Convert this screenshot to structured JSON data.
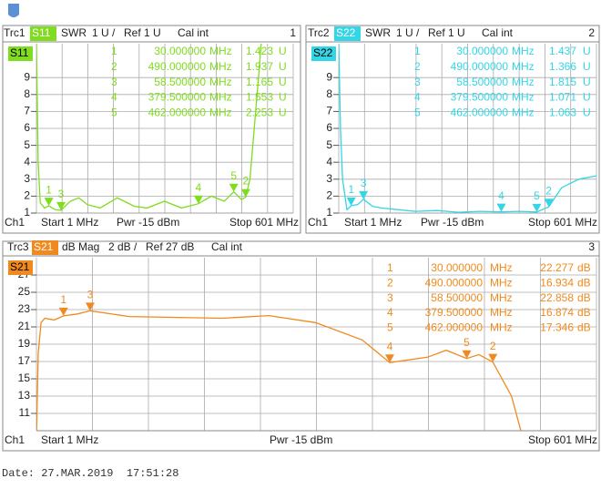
{
  "chart_data": [
    {
      "type": "line",
      "trace": "Trc1",
      "format": "SWR",
      "scale": "1 U /",
      "ref": "Ref 1 U",
      "cal": "Cal int",
      "window": "1",
      "channel": "Ch1",
      "start": "Start 1 MHz",
      "power": "Pwr -15 dBm",
      "stop": "Stop 601 MHz",
      "xlim": [
        1,
        601
      ],
      "ylim": [
        1,
        11
      ],
      "yticks": [
        1,
        2,
        3,
        4,
        5,
        6,
        7,
        8,
        9
      ],
      "series": [
        {
          "name": "S11",
          "color": "#7fdc1e",
          "x": [
            1,
            5,
            10,
            20,
            30,
            45,
            58.5,
            80,
            100,
            120,
            150,
            190,
            230,
            260,
            300,
            340,
            379.5,
            410,
            440,
            462,
            480,
            490,
            500,
            510,
            520,
            526
          ],
          "values": [
            11,
            4,
            1.6,
            1.3,
            1.423,
            1.2,
            1.165,
            1.7,
            1.9,
            1.5,
            1.3,
            1.9,
            1.4,
            1.3,
            1.7,
            1.3,
            1.553,
            2,
            1.7,
            2.253,
            1.8,
            1.937,
            3,
            6,
            9,
            11
          ]
        }
      ],
      "markers": {
        "names": [
          "1",
          "2",
          "3",
          "4",
          "5"
        ],
        "x": [
          30,
          490,
          58.5,
          379.5,
          462
        ],
        "x_labels": [
          "30.000000",
          "490.000000",
          "58.500000",
          "379.500000",
          "462.000000"
        ],
        "x_unit": "MHz",
        "values": [
          1.423,
          1.937,
          1.165,
          1.553,
          2.253
        ],
        "value_labels": [
          "1.423",
          "1.937",
          "1.165",
          "1.553",
          "2.253"
        ],
        "unit": "U"
      }
    },
    {
      "type": "line",
      "trace": "Trc2",
      "format": "SWR",
      "scale": "1 U /",
      "ref": "Ref 1 U",
      "cal": "Cal int",
      "window": "2",
      "channel": "Ch1",
      "start": "Start 1 MHz",
      "power": "Pwr -15 dBm",
      "stop": "Stop 601 MHz",
      "xlim": [
        1,
        601
      ],
      "ylim": [
        1,
        11
      ],
      "yticks": [
        1,
        2,
        3,
        4,
        5,
        6,
        7,
        8,
        9
      ],
      "series": [
        {
          "name": "S22",
          "color": "#33d6e6",
          "x": [
            1,
            5,
            10,
            20,
            30,
            45,
            58.5,
            80,
            100,
            140,
            180,
            230,
            280,
            330,
            379.5,
            420,
            462,
            490,
            520,
            560,
            601
          ],
          "values": [
            11,
            6,
            3,
            1.2,
            1.437,
            1.5,
            1.815,
            1.4,
            1.3,
            1.2,
            1.1,
            1.15,
            1.05,
            1.1,
            1.071,
            1.1,
            1.063,
            1.366,
            2.5,
            3,
            3.2
          ]
        }
      ],
      "markers": {
        "names": [
          "1",
          "2",
          "3",
          "4",
          "5"
        ],
        "x": [
          30,
          490,
          58.5,
          379.5,
          462
        ],
        "x_labels": [
          "30.000000",
          "490.000000",
          "58.500000",
          "379.500000",
          "462.000000"
        ],
        "x_unit": "MHz",
        "values": [
          1.437,
          1.366,
          1.815,
          1.071,
          1.063
        ],
        "value_labels": [
          "1.437",
          "1.366",
          "1.815",
          "1.071",
          "1.063"
        ],
        "unit": "U"
      }
    },
    {
      "type": "line",
      "trace": "Trc3",
      "format": "dB Mag",
      "scale": "2 dB /",
      "ref": "Ref 27 dB",
      "cal": "Cal int",
      "window": "3",
      "channel": "Ch1",
      "start": "Start 1 MHz",
      "power": "Pwr -15 dBm",
      "stop": "Stop 601 MHz",
      "xlim": [
        1,
        601
      ],
      "ylim": [
        9,
        29
      ],
      "yticks": [
        11,
        13,
        15,
        17,
        19,
        21,
        23,
        25,
        27
      ],
      "series": [
        {
          "name": "S21",
          "color": "#f08a1e",
          "x": [
            1,
            3,
            6,
            10,
            20,
            30,
            45,
            58.5,
            100,
            200,
            250,
            300,
            350,
            379.5,
            420,
            440,
            462,
            475,
            490,
            510,
            520
          ],
          "values": [
            8,
            18,
            21.5,
            22,
            21.8,
            22.277,
            22.5,
            22.858,
            22.2,
            22,
            22.3,
            21.5,
            19.5,
            16.874,
            17.5,
            18.3,
            17.346,
            17.8,
            16.934,
            13,
            9
          ]
        }
      ],
      "markers": {
        "names": [
          "1",
          "2",
          "3",
          "4",
          "5"
        ],
        "x": [
          30,
          490,
          58.5,
          379.5,
          462
        ],
        "x_labels": [
          "30.000000",
          "490.000000",
          "58.500000",
          "379.500000",
          "462.000000"
        ],
        "x_unit": "MHz",
        "values": [
          22.277,
          16.934,
          22.858,
          16.874,
          17.346
        ],
        "value_labels": [
          "22.277",
          "16.934",
          "22.858",
          "16.874",
          "17.346"
        ],
        "unit": "dB"
      }
    }
  ],
  "date": "Date: 27.MAR.2019  17:51:28"
}
